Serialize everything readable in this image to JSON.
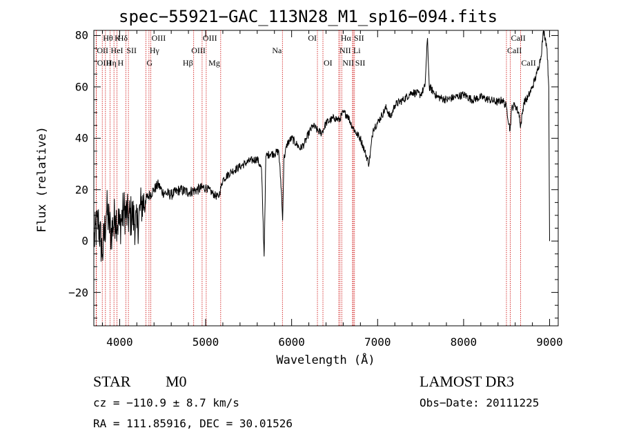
{
  "chart_data": {
    "type": "line",
    "title": "spec−55921−GAC_113N28_M1_sp16−094.fits",
    "xlabel": "Wavelength (Å)",
    "ylabel": "Flux (relative)",
    "xlim": [
      3700,
      9100
    ],
    "ylim": [
      -33,
      82
    ],
    "x_ticks": [
      4000,
      5000,
      6000,
      7000,
      8000,
      9000
    ],
    "x_tick_labels": [
      "4000",
      "5000",
      "6000",
      "7000",
      "8000",
      "9000"
    ],
    "y_ticks": [
      -20,
      0,
      20,
      40,
      60,
      80
    ],
    "y_tick_labels": [
      "−20",
      "0",
      "20",
      "40",
      "60",
      "80"
    ],
    "series": [
      {
        "name": "spectrum",
        "color": "#000000",
        "x": [
          3700,
          3750,
          3800,
          3850,
          3900,
          3950,
          4000,
          4050,
          4100,
          4150,
          4200,
          4250,
          4300,
          4350,
          4400,
          4450,
          4500,
          4600,
          4700,
          4800,
          4900,
          5000,
          5100,
          5150,
          5200,
          5300,
          5400,
          5500,
          5600,
          5650,
          5680,
          5700,
          5750,
          5800,
          5850,
          5880,
          5895,
          5910,
          5950,
          6000,
          6050,
          6100,
          6150,
          6200,
          6250,
          6300,
          6350,
          6400,
          6450,
          6500,
          6550,
          6600,
          6650,
          6700,
          6750,
          6800,
          6850,
          6900,
          6950,
          7000,
          7050,
          7100,
          7150,
          7200,
          7300,
          7400,
          7500,
          7550,
          7580,
          7600,
          7650,
          7700,
          7800,
          7900,
          8000,
          8100,
          8200,
          8300,
          8400,
          8450,
          8500,
          8540,
          8560,
          8600,
          8650,
          8660,
          8700,
          8750,
          8800,
          8850,
          8900,
          8930,
          8950,
          8970,
          8990,
          9000
        ],
        "y": [
          0,
          8,
          -5,
          12,
          3,
          10,
          6,
          12,
          9,
          10,
          5,
          14,
          16,
          18,
          20,
          22,
          19,
          18,
          20,
          19,
          20,
          21,
          18,
          17,
          24,
          27,
          29,
          31,
          32,
          28,
          -6,
          33,
          34,
          34,
          35,
          20,
          8,
          32,
          38,
          40,
          38,
          36,
          38,
          42,
          45,
          43,
          42,
          46,
          47,
          48,
          47,
          50,
          49,
          45,
          42,
          40,
          35,
          30,
          44,
          46,
          49,
          52,
          48,
          53,
          55,
          58,
          57,
          60,
          79,
          60,
          58,
          56,
          55,
          56,
          57,
          55,
          56,
          55,
          54,
          55,
          52,
          43,
          52,
          53,
          49,
          44,
          54,
          56,
          60,
          65,
          72,
          82,
          79,
          75,
          60,
          0
        ]
      }
    ],
    "emission_lines": [
      {
        "label": "Hθ",
        "x": 3798,
        "row": 1,
        "anchor": "left"
      },
      {
        "label": "K",
        "x": 3934,
        "row": 1,
        "anchor": "left"
      },
      {
        "label": "Hδ",
        "x": 4102,
        "row": 1,
        "anchor": "right"
      },
      {
        "label": "OIII",
        "x": 4363,
        "row": 1,
        "anchor": "left"
      },
      {
        "label": "OIII",
        "x": 4959,
        "row": 1,
        "anchor": "left"
      },
      {
        "label": "OI",
        "x": 6300,
        "row": 1,
        "anchor": "right"
      },
      {
        "label": "Hα",
        "x": 6563,
        "row": 1,
        "anchor": "left"
      },
      {
        "label": "SII",
        "x": 6717,
        "row": 1,
        "anchor": "left"
      },
      {
        "label": "CaII",
        "x": 8542,
        "row": 1,
        "anchor": "left"
      },
      {
        "label": "OII",
        "x": 3727,
        "row": 2,
        "anchor": "left"
      },
      {
        "label": "HeI",
        "x": 3889,
        "row": 2,
        "anchor": "left"
      },
      {
        "label": "SII",
        "x": 4072,
        "row": 2,
        "anchor": "left"
      },
      {
        "label": "Hγ",
        "x": 4341,
        "row": 2,
        "anchor": "left"
      },
      {
        "label": "OIII",
        "x": 5007,
        "row": 2,
        "anchor": "right"
      },
      {
        "label": "Na",
        "x": 5893,
        "row": 2,
        "anchor": "right"
      },
      {
        "label": "NII",
        "x": 6548,
        "row": 2,
        "anchor": "left"
      },
      {
        "label": "Li",
        "x": 6708,
        "row": 2,
        "anchor": "left"
      },
      {
        "label": "CaII",
        "x": 8498,
        "row": 2,
        "anchor": "left"
      },
      {
        "label": "OIII",
        "x": 3730,
        "row": 3,
        "anchor": "left"
      },
      {
        "label": "Hη",
        "x": 3835,
        "row": 3,
        "anchor": "left"
      },
      {
        "label": "H",
        "x": 3969,
        "row": 3,
        "anchor": "left"
      },
      {
        "label": "G",
        "x": 4305,
        "row": 3,
        "anchor": "left"
      },
      {
        "label": "Hβ",
        "x": 4861,
        "row": 3,
        "anchor": "right"
      },
      {
        "label": "Mg",
        "x": 5175,
        "row": 3,
        "anchor": "right"
      },
      {
        "label": "OI",
        "x": 6364,
        "row": 3,
        "anchor": "left"
      },
      {
        "label": "NII",
        "x": 6583,
        "row": 3,
        "anchor": "left"
      },
      {
        "label": "SII",
        "x": 6731,
        "row": 3,
        "anchor": "left"
      },
      {
        "label": "CaII",
        "x": 8662,
        "row": 3,
        "anchor": "left"
      }
    ],
    "emission_line_color": "#cc0000"
  },
  "info": {
    "class": "STAR",
    "subclass": "M0",
    "survey": "LAMOST DR3",
    "cz": "cz = −110.9 ± 8.7 km/s",
    "obs_date": "Obs−Date: 20111225",
    "coords": "RA = 111.85916, DEC =  30.01526"
  }
}
